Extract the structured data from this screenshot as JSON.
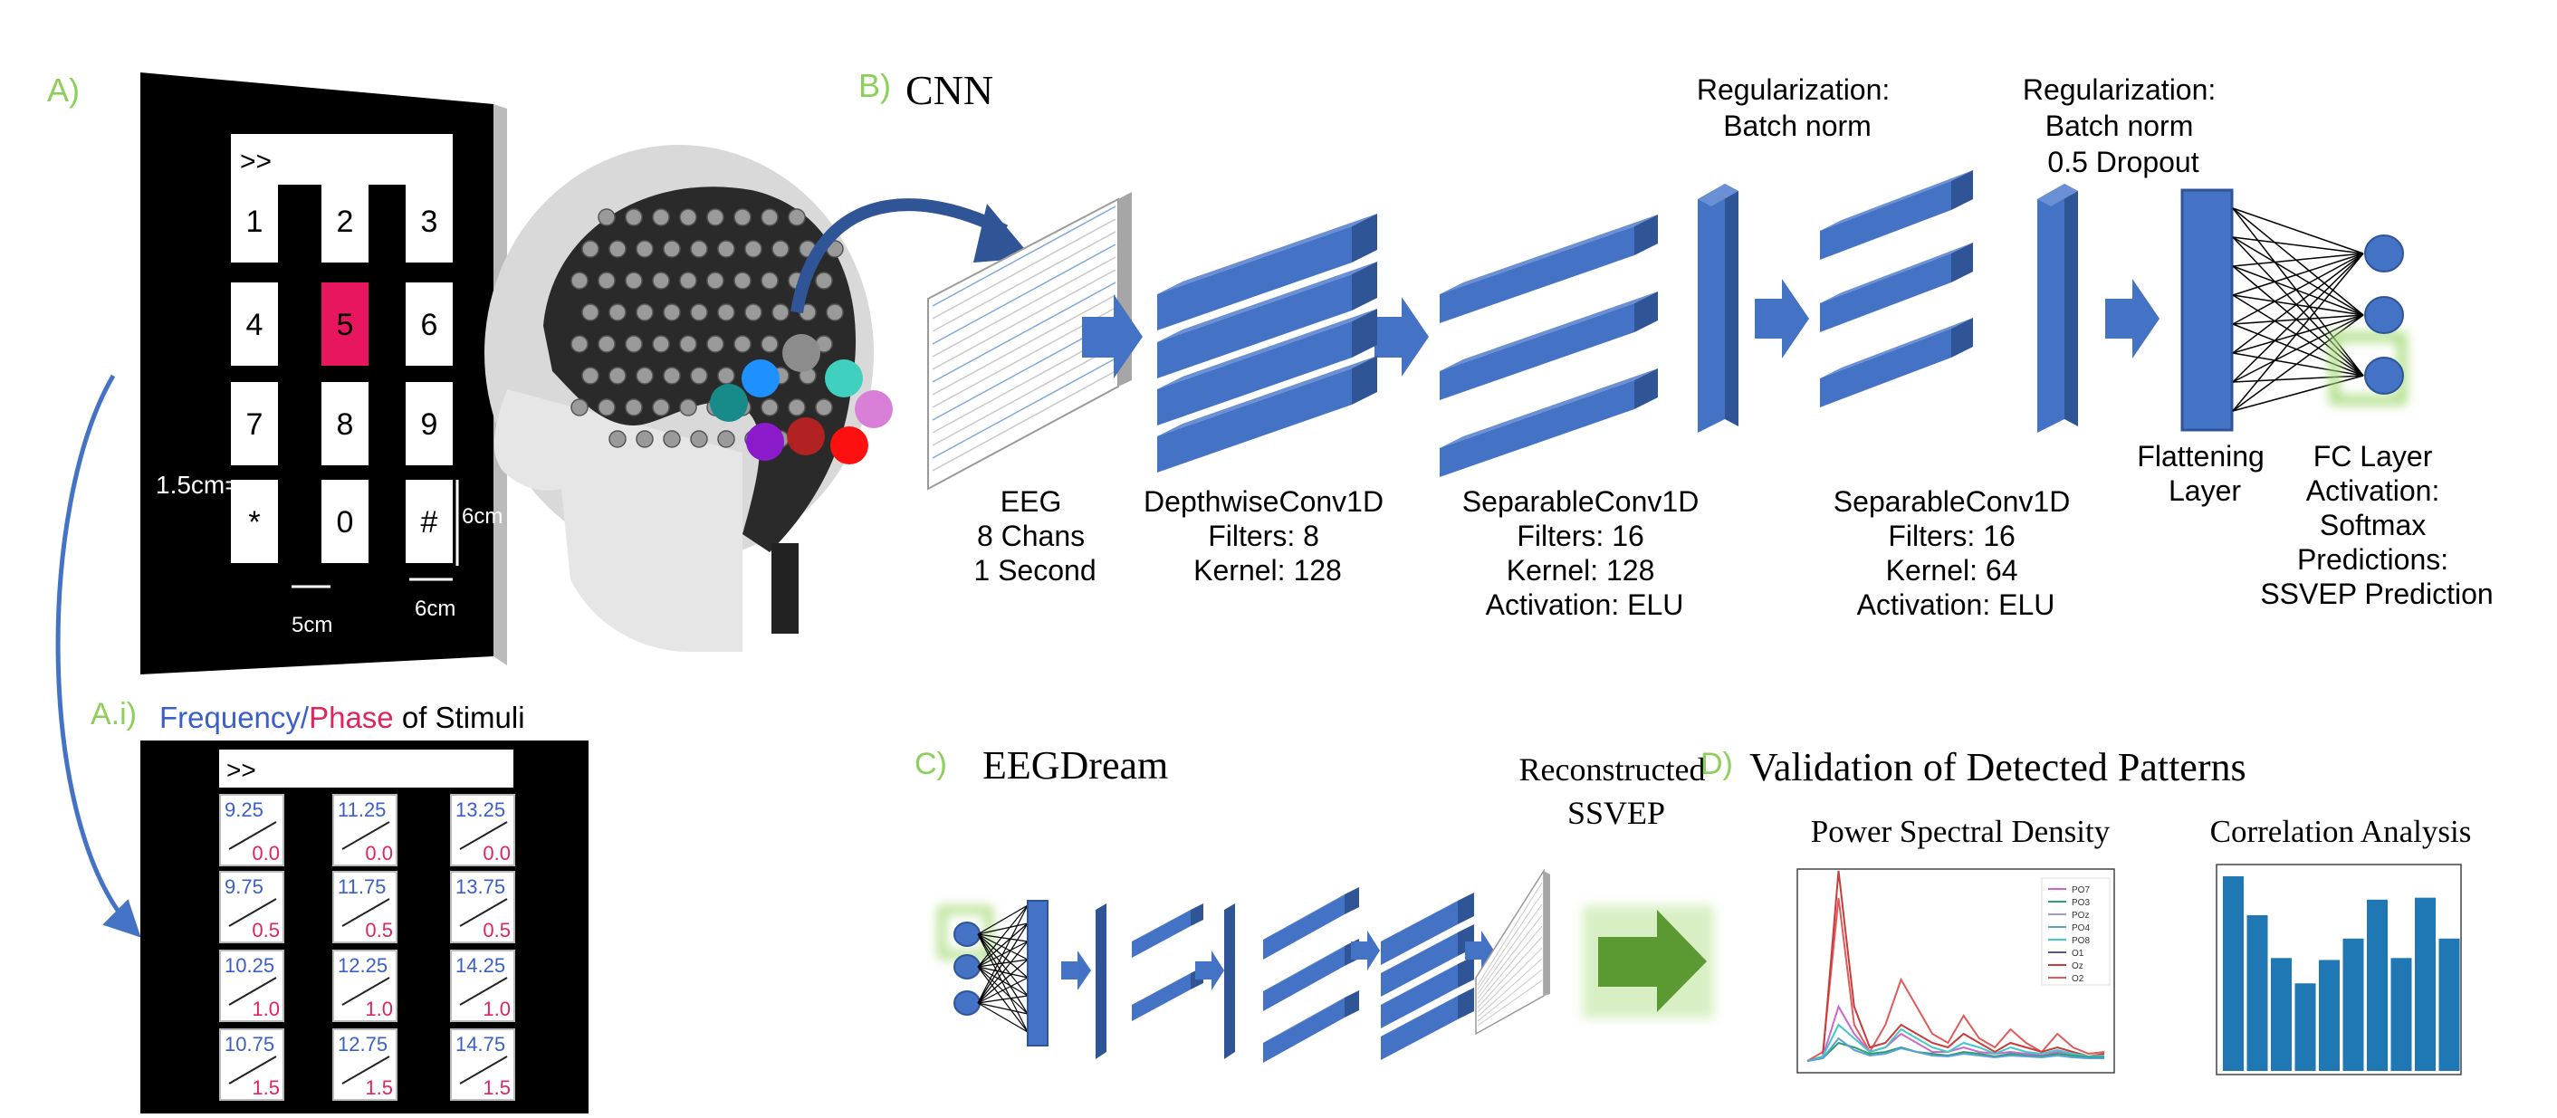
{
  "panel_a": {
    "label": "A)",
    "display": ">>",
    "keys": [
      "1",
      "2",
      "3",
      "4",
      "5",
      "6",
      "7",
      "8",
      "9",
      "*",
      "0",
      "#"
    ],
    "dim_key_height": "1.5cm=",
    "dim_side": "6cm",
    "dim_gap": "5cm",
    "dim_width": "6cm"
  },
  "panel_ai": {
    "label": "A.i)",
    "caption_frequency": "Frequency",
    "caption_slash": "/",
    "caption_phase": "Phase",
    "caption_rest": " of Stimuli",
    "display": ">>",
    "cells": [
      {
        "freq": "9.25",
        "phase": "0.0"
      },
      {
        "freq": "11.25",
        "phase": "0.0"
      },
      {
        "freq": "13.25",
        "phase": "0.0"
      },
      {
        "freq": "9.75",
        "phase": "0.5"
      },
      {
        "freq": "11.75",
        "phase": "0.5"
      },
      {
        "freq": "13.75",
        "phase": "0.5"
      },
      {
        "freq": "10.25",
        "phase": "1.0"
      },
      {
        "freq": "12.25",
        "phase": "1.0"
      },
      {
        "freq": "14.25",
        "phase": "1.0"
      },
      {
        "freq": "10.75",
        "phase": "1.5"
      },
      {
        "freq": "12.75",
        "phase": "1.5"
      },
      {
        "freq": "14.75",
        "phase": "1.5"
      }
    ]
  },
  "panel_b": {
    "label": "B)",
    "title": "CNN",
    "eeg": [
      "EEG",
      "8 Chans",
      "1 Second"
    ],
    "depthwise": [
      "DepthwiseConv1D",
      "Filters: 8",
      "Kernel: 128"
    ],
    "separable1": [
      "SeparableConv1D",
      "Filters: 16",
      "Kernel: 128",
      "Activation: ELU"
    ],
    "reg1": [
      "Regularization:",
      "Batch norm"
    ],
    "separable2": [
      "SeparableConv1D",
      "Filters: 16",
      "Kernel: 64",
      "Activation: ELU"
    ],
    "reg2": [
      "Regularization:",
      "Batch norm",
      "0.5 Dropout"
    ],
    "flatten": [
      "Flattening",
      "Layer"
    ],
    "fc": [
      "FC Layer",
      "Activation:",
      "Softmax",
      "Predictions:",
      "SSVEP Prediction"
    ]
  },
  "panel_c": {
    "label": "C)",
    "title": "EEGDream",
    "reconstructed": [
      "Reconstructed",
      "SSVEP"
    ]
  },
  "panel_d": {
    "label": "D)",
    "title": "Validation of Detected Patterns",
    "psd_title": "Power Spectral Density",
    "corr_title": "Correlation Analysis",
    "psd_legend": [
      "PO7",
      "PO3",
      "POz",
      "PO4",
      "PO8",
      "O1",
      "Oz",
      "O2"
    ],
    "psd_legend_colors": [
      "#cc66cc",
      "#2e9e6e",
      "#9b9bcc",
      "#5aa0d8",
      "#3fc9c9",
      "#555599",
      "#c83b3b",
      "#e05a5a"
    ],
    "corr_values": [
      1.0,
      0.8,
      0.58,
      0.45,
      0.57,
      0.68,
      0.88,
      0.58,
      0.89,
      0.68
    ]
  },
  "colors": {
    "block_blue": "#4472c4",
    "label_green": "#8ccf5a",
    "freq_blue": "#3a5fc8",
    "phase_red": "#e0245e",
    "highlight_key": "#e8165e",
    "arrow_green": "#5b9a32",
    "bar_blue": "#1f77b4"
  }
}
